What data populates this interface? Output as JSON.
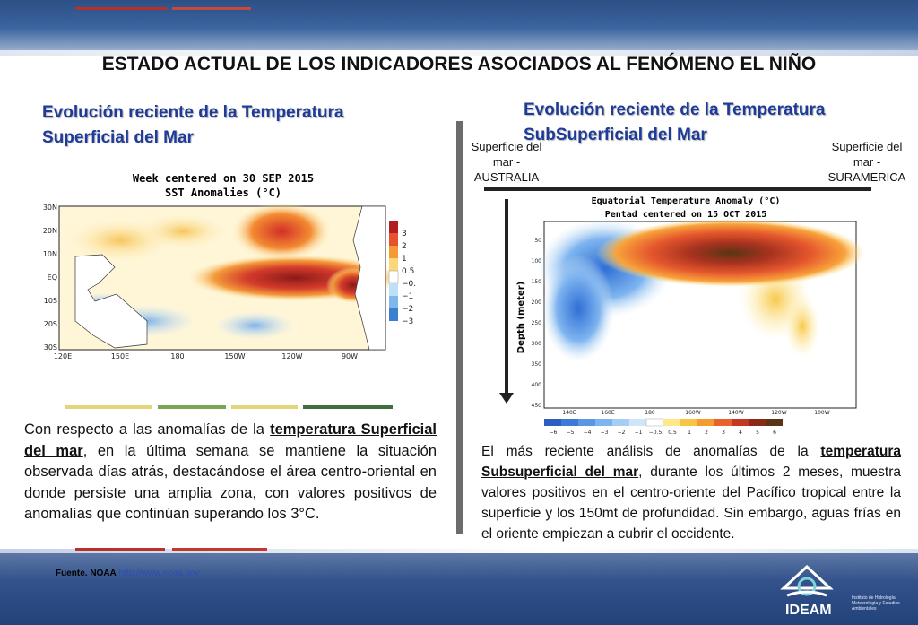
{
  "title": "ESTADO ACTUAL DE LOS INDICADORES ASOCIADOS AL FENÓMENO EL NIÑO",
  "left_section": {
    "subtitle": "Evolución reciente de la Temperatura Superficial del Mar",
    "figure": {
      "title_line1": "Week centered on 30 SEP 2015",
      "title_line2": "SST Anomalies (°C)",
      "lat_labels": [
        "30N",
        "20N",
        "10N",
        "EQ",
        "10S",
        "20S",
        "30S"
      ],
      "lon_labels": [
        "120E",
        "150E",
        "180",
        "150W",
        "120W",
        "90W"
      ],
      "legend_labels": [
        "3",
        "2",
        "1",
        "0.5",
        "−0.5",
        "−1",
        "−2",
        "−3"
      ]
    },
    "paragraph_start": "Con respecto a las anomalías de la ",
    "paragraph_bold": "temperatura Superficial del mar",
    "paragraph_end": ", en la última semana se mantiene la situación observada días atrás, destacándose el área centro-oriental en donde persiste una amplia zona, con valores positivos de anomalías que continúan superando los 3°C."
  },
  "right_section": {
    "subtitle": "Evolución reciente de la Temperatura SubSuperficial del Mar",
    "label_left": "Superficie del mar - AUSTRALIA",
    "label_right": "Superficie del mar - SURAMERICA",
    "figure": {
      "title_line1": "Equatorial Temperature Anomaly (°C)",
      "title_line2": "Pentad centered on 15 OCT 2015",
      "y_axis_label": "Depth (meter)",
      "depth_labels": [
        "50",
        "100",
        "150",
        "200",
        "250",
        "300",
        "350",
        "400",
        "450"
      ],
      "lon_labels": [
        "140E",
        "160E",
        "180",
        "160W",
        "140W",
        "120W",
        "100W"
      ],
      "colorbar_labels": [
        "−6",
        "−5",
        "−4",
        "−3",
        "−2",
        "−1",
        "−0.5",
        "0.5",
        "1",
        "2",
        "3",
        "4",
        "5",
        "6"
      ]
    },
    "paragraph_start": "El más reciente análisis de anomalías de la ",
    "paragraph_bold": "temperatura Subsuperficial del mar",
    "paragraph_end": ", durante los últimos 2 meses, muestra valores positivos en el centro-oriente del Pacífico tropical entre la superficie y los 150mt de profundidad. Sin embargo, aguas frías en el oriente empiezan a cubrir el occidente."
  },
  "footer": {
    "source_label": "Fuente. NOAA",
    "source_link": "http://www.noaa.gov",
    "logo_text": "IDEAM",
    "logo_small": "Instituto de Hidrología, Meteorología y Estudios Ambientales"
  },
  "colors": {
    "subtitle_blue": "#1f3b99",
    "separator_colors": [
      "#e3d57a",
      "#7aa654",
      "#e3d57a",
      "#3e6f3c"
    ],
    "accent_top": [
      "#c0392b",
      "#b2432f"
    ]
  }
}
